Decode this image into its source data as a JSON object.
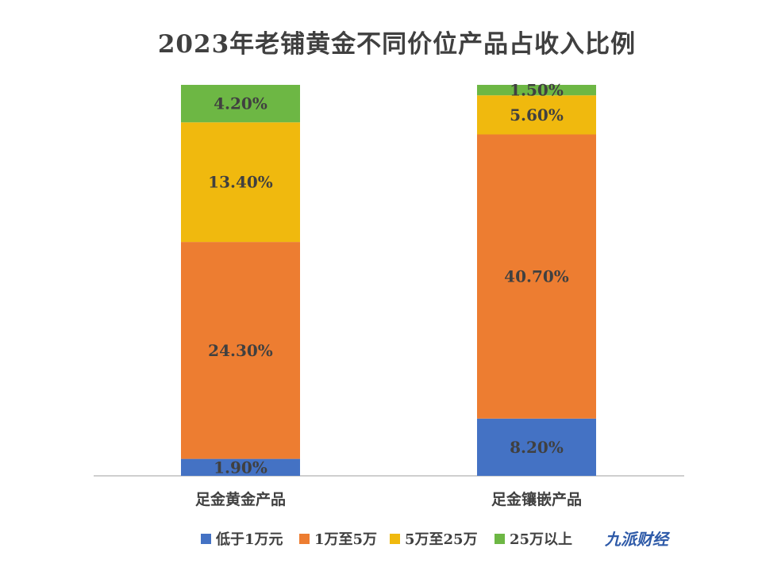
{
  "chart_data": {
    "type": "bar",
    "stacked": true,
    "title": "2023年老铺黄金不同价位产品占收入比例",
    "categories": [
      "足金黄金产品",
      "足金镶嵌产品"
    ],
    "series": [
      {
        "name": "低于1万元",
        "values": [
          1.9,
          8.2
        ],
        "labels": [
          "1.90%",
          "8.20%"
        ]
      },
      {
        "name": "1万至5万",
        "values": [
          24.3,
          40.7
        ],
        "labels": [
          "24.30%",
          "40.70%"
        ]
      },
      {
        "name": "5万至25万",
        "values": [
          13.4,
          5.6
        ],
        "labels": [
          "13.40%",
          "5.60%"
        ]
      },
      {
        "name": "25万以上",
        "values": [
          4.2,
          1.5
        ],
        "labels": [
          "4.20%",
          "1.50%"
        ]
      }
    ],
    "legend_position": "bottom",
    "grid": false
  },
  "colors": {
    "低于1万元": "#4472C4",
    "1万至5万": "#ED7D31",
    "5万至25万": "#F0B90E",
    "25万以上": "#6DB744",
    "text": "#404040",
    "axis": "#BFBFBF"
  },
  "brand": {
    "logo_text": "九派财经",
    "color": "#2E5AA8"
  }
}
